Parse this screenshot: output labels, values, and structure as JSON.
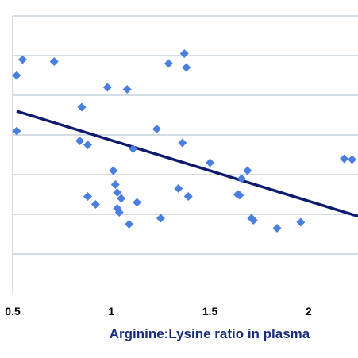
{
  "chart_data": {
    "type": "scatter",
    "title": "",
    "xlabel": "Arginine:Lysine ratio in plasma",
    "ylabel": "",
    "xlim": [
      0.5,
      2.25
    ],
    "ylim": [
      0,
      7
    ],
    "grid": true,
    "x_ticks": [
      0.5,
      1,
      1.5,
      2
    ],
    "x_tick_labels": [
      "0.5",
      "1",
      "1.5",
      "2"
    ],
    "y_gridlines": [
      1,
      2,
      3,
      4,
      5,
      6
    ],
    "colors": {
      "points": "#4a7fe0",
      "trendline": "#0d1a6e",
      "grid": "#a9b9c9",
      "axis_title": "#1a2d7a"
    },
    "series": [
      {
        "values": [
          {
            "x": 0.52,
            "y": 4.1
          },
          {
            "x": 0.52,
            "y": 5.5
          },
          {
            "x": 0.55,
            "y": 5.9
          },
          {
            "x": 0.71,
            "y": 5.85
          },
          {
            "x": 0.85,
            "y": 4.7
          },
          {
            "x": 0.84,
            "y": 3.85
          },
          {
            "x": 0.88,
            "y": 3.75
          },
          {
            "x": 0.88,
            "y": 2.45
          },
          {
            "x": 0.92,
            "y": 2.25
          },
          {
            "x": 0.98,
            "y": 5.2
          },
          {
            "x": 1.01,
            "y": 3.1
          },
          {
            "x": 1.02,
            "y": 2.75
          },
          {
            "x": 1.03,
            "y": 2.55
          },
          {
            "x": 1.03,
            "y": 2.15
          },
          {
            "x": 1.04,
            "y": 2.05
          },
          {
            "x": 1.05,
            "y": 2.4
          },
          {
            "x": 1.08,
            "y": 5.15
          },
          {
            "x": 1.09,
            "y": 1.75
          },
          {
            "x": 1.11,
            "y": 3.65
          },
          {
            "x": 1.13,
            "y": 2.3
          },
          {
            "x": 1.23,
            "y": 4.15
          },
          {
            "x": 1.25,
            "y": 1.9
          },
          {
            "x": 1.29,
            "y": 5.8
          },
          {
            "x": 1.34,
            "y": 2.65
          },
          {
            "x": 1.36,
            "y": 3.8
          },
          {
            "x": 1.37,
            "y": 6.05
          },
          {
            "x": 1.38,
            "y": 5.7
          },
          {
            "x": 1.39,
            "y": 2.45
          },
          {
            "x": 1.5,
            "y": 3.3
          },
          {
            "x": 1.64,
            "y": 2.5
          },
          {
            "x": 1.65,
            "y": 2.48
          },
          {
            "x": 1.66,
            "y": 2.9
          },
          {
            "x": 1.69,
            "y": 3.1
          },
          {
            "x": 1.71,
            "y": 1.9
          },
          {
            "x": 1.72,
            "y": 1.85
          },
          {
            "x": 1.84,
            "y": 1.65
          },
          {
            "x": 1.96,
            "y": 1.8
          },
          {
            "x": 2.18,
            "y": 3.4
          },
          {
            "x": 2.22,
            "y": 3.38
          }
        ]
      }
    ],
    "trendline": {
      "x": [
        0.52,
        2.25
      ],
      "y": [
        4.6,
        1.95
      ]
    }
  }
}
